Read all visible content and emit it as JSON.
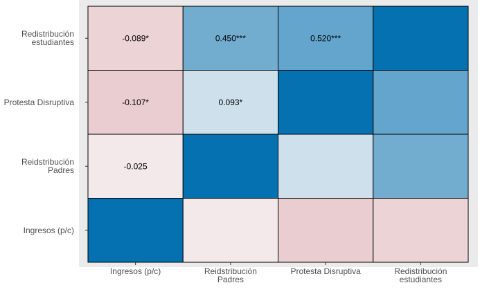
{
  "chart_data": {
    "type": "heatmap",
    "title": "",
    "xlabel": "",
    "ylabel": "",
    "x_categories": [
      [
        "Ingresos (p/c)"
      ],
      [
        "Reidstribución",
        "Padres"
      ],
      [
        "Protesta Disruptiva"
      ],
      [
        "Redistribución",
        "estudiantes"
      ]
    ],
    "y_categories_top_to_bottom": [
      [
        "Redistribución",
        "estudiantes"
      ],
      [
        "Protesta Disruptiva"
      ],
      [
        "Reidstribución",
        "Padres"
      ],
      [
        "Ingresos (p/c)"
      ]
    ],
    "cells": [
      {
        "row": 0,
        "col": 0,
        "value": -0.089,
        "label": "-0.089*"
      },
      {
        "row": 0,
        "col": 1,
        "value": 0.45,
        "label": "0.450***"
      },
      {
        "row": 0,
        "col": 2,
        "value": 0.52,
        "label": "0.520***"
      },
      {
        "row": 0,
        "col": 3,
        "value": 1.0,
        "label": ""
      },
      {
        "row": 1,
        "col": 0,
        "value": -0.107,
        "label": "-0.107*"
      },
      {
        "row": 1,
        "col": 1,
        "value": 0.093,
        "label": "0.093*"
      },
      {
        "row": 1,
        "col": 2,
        "value": 1.0,
        "label": ""
      },
      {
        "row": 1,
        "col": 3,
        "value": 0.52,
        "label": ""
      },
      {
        "row": 2,
        "col": 0,
        "value": -0.025,
        "label": "-0.025"
      },
      {
        "row": 2,
        "col": 1,
        "value": 1.0,
        "label": ""
      },
      {
        "row": 2,
        "col": 2,
        "value": 0.093,
        "label": ""
      },
      {
        "row": 2,
        "col": 3,
        "value": 0.45,
        "label": ""
      },
      {
        "row": 3,
        "col": 0,
        "value": 1.0,
        "label": ""
      },
      {
        "row": 3,
        "col": 1,
        "value": -0.025,
        "label": ""
      },
      {
        "row": 3,
        "col": 2,
        "value": -0.107,
        "label": ""
      },
      {
        "row": 3,
        "col": 3,
        "value": -0.089,
        "label": ""
      }
    ],
    "value_range": [
      -1,
      1
    ],
    "colors": {
      "low": "#b2182b",
      "mid": "#f7f7f7",
      "high": "#0571b0"
    },
    "panel_background": "#ebebeb",
    "grid": false,
    "legend": "none"
  }
}
